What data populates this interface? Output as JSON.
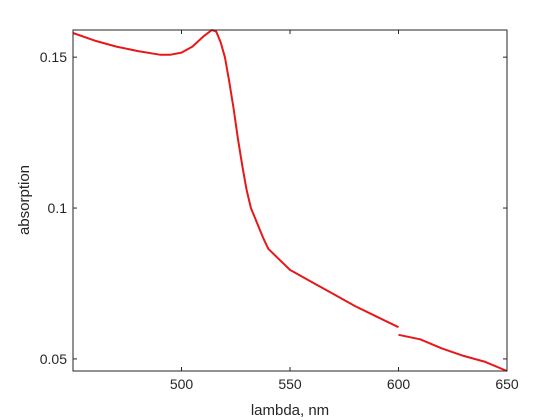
{
  "chart_data": {
    "type": "line",
    "xlabel": "lambda, nm",
    "ylabel": "absorption",
    "xlim": [
      450,
      650
    ],
    "ylim": [
      0.046,
      0.159
    ],
    "x_ticks": [
      500,
      550,
      600,
      650
    ],
    "y_ticks": [
      0.05,
      0.1,
      0.15
    ],
    "x_tick_labels": [
      "500",
      "550",
      "600",
      "650"
    ],
    "y_tick_labels": [
      "0.05",
      "0.1",
      "0.15"
    ],
    "grid": false,
    "box": true,
    "series": [
      {
        "color": "#e6191a",
        "segments": [
          [
            [
              450,
              0.158
            ],
            [
              460,
              0.1555
            ],
            [
              470,
              0.1535
            ],
            [
              480,
              0.152
            ],
            [
              490,
              0.1508
            ],
            [
              495,
              0.1508
            ],
            [
              500,
              0.1515
            ],
            [
              505,
              0.1535
            ],
            [
              510,
              0.1568
            ],
            [
              514,
              0.159
            ],
            [
              516,
              0.1585
            ],
            [
              518,
              0.155
            ],
            [
              520,
              0.15
            ],
            [
              522,
              0.142
            ],
            [
              524,
              0.133
            ],
            [
              526,
              0.123
            ],
            [
              528,
              0.114
            ],
            [
              530,
              0.106
            ],
            [
              532,
              0.1
            ],
            [
              534,
              0.0965
            ],
            [
              536,
              0.093
            ],
            [
              538,
              0.0895
            ],
            [
              540,
              0.0865
            ],
            [
              545,
              0.083
            ],
            [
              550,
              0.0795
            ],
            [
              560,
              0.0755
            ],
            [
              570,
              0.0715
            ],
            [
              580,
              0.0675
            ],
            [
              590,
              0.064
            ],
            [
              600,
              0.0605
            ]
          ],
          [
            [
              600,
              0.058
            ],
            [
              610,
              0.0565
            ],
            [
              620,
              0.0535
            ],
            [
              630,
              0.051
            ],
            [
              640,
              0.049
            ],
            [
              650,
              0.046
            ]
          ]
        ]
      }
    ]
  }
}
